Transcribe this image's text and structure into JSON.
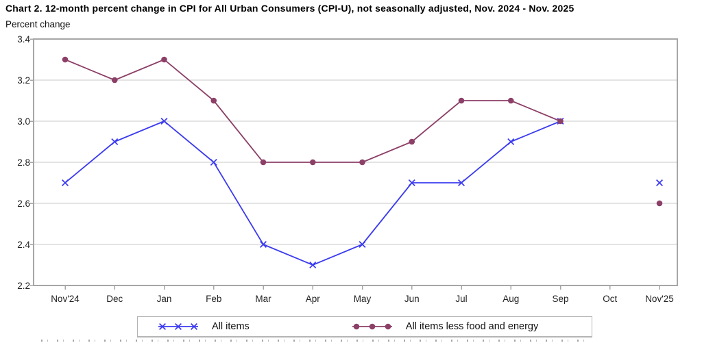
{
  "title": "Chart 2. 12-month percent change in CPI for All Urban Consumers (CPI-U), not seasonally adjusted, Nov. 2024 - Nov. 2025",
  "axis": {
    "y_title": "Percent change"
  },
  "colors": {
    "all_items": "#3b3bf0",
    "all_items_less_food_energy": "#8c3f67",
    "gridline": "#c9c9c9",
    "plot_border": "#a6a6a6",
    "text": "#222222"
  },
  "chart_data": {
    "type": "line",
    "title": "Chart 2. 12-month percent change in CPI for All Urban Consumers (CPI-U), not seasonally adjusted, Nov. 2024 - Nov. 2025",
    "ylabel": "Percent change",
    "xlabel": "",
    "ylim": [
      2.2,
      3.4
    ],
    "yticks": [
      2.2,
      2.4,
      2.6,
      2.8,
      3.0,
      3.2,
      3.4
    ],
    "grid": true,
    "legend_position": "bottom",
    "categories": [
      "Nov'24",
      "Dec",
      "Jan",
      "Feb",
      "Mar",
      "Apr",
      "May",
      "Jun",
      "Jul",
      "Aug",
      "Sep",
      "Oct",
      "Nov'25"
    ],
    "series": [
      {
        "name": "All items",
        "marker": "x",
        "color": "#3b3bf0",
        "values": [
          2.7,
          2.9,
          3.0,
          2.8,
          2.4,
          2.3,
          2.4,
          2.7,
          2.7,
          2.9,
          3.0,
          null,
          2.7
        ]
      },
      {
        "name": "All items less food and energy",
        "marker": "circle",
        "color": "#8c3f67",
        "values": [
          3.3,
          3.2,
          3.3,
          3.1,
          2.8,
          2.8,
          2.8,
          2.9,
          3.1,
          3.1,
          3.0,
          null,
          2.6
        ]
      }
    ]
  }
}
